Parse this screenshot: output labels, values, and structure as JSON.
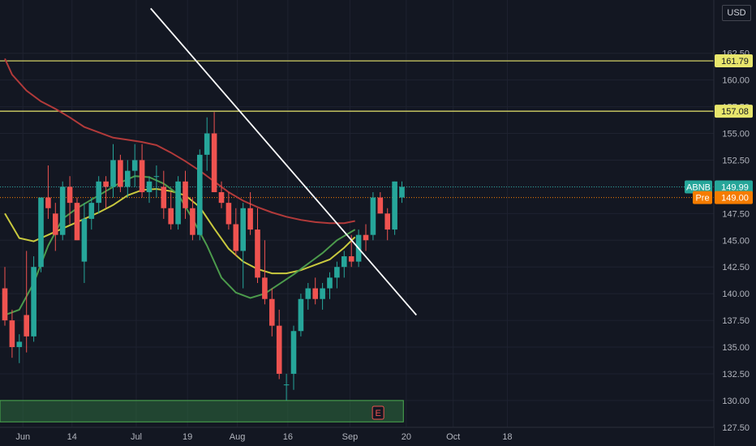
{
  "currency_button": "USD",
  "colors": {
    "background": "#131722",
    "up": "#26a69a",
    "down": "#ef5350",
    "ma_yellow": "#c9c93e",
    "ma_green": "#4c9b4c",
    "ma_red": "#b23a3a",
    "level_line": "#e8e66c",
    "trend_line": "#ffffff",
    "zone": "#2e6b3e"
  },
  "chart_data": {
    "type": "candlestick",
    "symbol": "ABNB",
    "ylim": [
      126.5,
      166.5
    ],
    "y_ticks": [
      "127.50",
      "130.00",
      "132.50",
      "135.00",
      "137.50",
      "140.00",
      "142.50",
      "145.00",
      "147.50",
      "150.00",
      "152.50",
      "155.00",
      "157.50",
      "160.00",
      "162.50"
    ],
    "x_ticks": [
      {
        "label": "Jun",
        "i": 2.5
      },
      {
        "label": "14",
        "i": 9.3
      },
      {
        "label": "Jul",
        "i": 18.2
      },
      {
        "label": "19",
        "i": 25.3
      },
      {
        "label": "Aug",
        "i": 32.2
      },
      {
        "label": "16",
        "i": 39.2
      },
      {
        "label": "Sep",
        "i": 47.8
      },
      {
        "label": "20",
        "i": 55.6
      },
      {
        "label": "Oct",
        "i": 62.1
      },
      {
        "label": "18",
        "i": 69.6
      }
    ],
    "candles": [
      [
        140.5,
        142.5,
        137.0,
        137.5
      ],
      [
        137.5,
        138.5,
        134.0,
        135.0
      ],
      [
        135.0,
        136.2,
        133.5,
        135.5
      ],
      [
        138.0,
        144.0,
        134.5,
        136.0
      ],
      [
        136.0,
        143.5,
        135.5,
        142.5
      ],
      [
        142.5,
        149.0,
        142.0,
        149.0
      ],
      [
        149.0,
        152.0,
        147.0,
        148.0
      ],
      [
        147.5,
        148.5,
        144.0,
        145.5
      ],
      [
        145.5,
        150.5,
        145.0,
        150.0
      ],
      [
        150.0,
        151.0,
        146.5,
        148.5
      ],
      [
        148.5,
        149.0,
        145.0,
        145.0
      ],
      [
        143.0,
        148.5,
        141.0,
        147.0
      ],
      [
        147.0,
        149.0,
        146.0,
        148.5
      ],
      [
        148.5,
        151.0,
        147.5,
        150.5
      ],
      [
        150.5,
        151.0,
        148.0,
        150.0
      ],
      [
        150.0,
        154.0,
        149.0,
        152.5
      ],
      [
        152.5,
        153.0,
        149.5,
        150.0
      ],
      [
        150.0,
        152.5,
        149.0,
        151.5
      ],
      [
        151.5,
        154.0,
        150.0,
        152.5
      ],
      [
        152.5,
        154.0,
        149.0,
        149.5
      ],
      [
        149.5,
        151.0,
        148.5,
        150.5
      ],
      [
        151.0,
        152.0,
        149.0,
        151.0
      ],
      [
        150.0,
        151.5,
        147.0,
        148.0
      ],
      [
        148.0,
        149.5,
        146.0,
        146.5
      ],
      [
        146.5,
        151.0,
        146.0,
        150.5
      ],
      [
        150.5,
        151.5,
        147.0,
        148.0
      ],
      [
        148.0,
        149.0,
        145.0,
        145.5
      ],
      [
        145.5,
        153.5,
        145.0,
        153.0
      ],
      [
        153.0,
        156.5,
        151.5,
        155.0
      ],
      [
        155.0,
        157.0,
        149.5,
        149.5
      ],
      [
        149.5,
        150.5,
        148.0,
        148.5
      ],
      [
        148.5,
        149.5,
        146.0,
        146.5
      ],
      [
        146.5,
        148.0,
        143.5,
        144.0
      ],
      [
        144.0,
        148.5,
        140.5,
        148.0
      ],
      [
        148.0,
        149.5,
        145.5,
        146.0
      ],
      [
        146.0,
        148.0,
        141.0,
        141.5
      ],
      [
        141.5,
        145.0,
        139.0,
        139.5
      ],
      [
        139.5,
        140.5,
        136.0,
        137.0
      ],
      [
        137.0,
        138.5,
        132.0,
        132.5
      ],
      [
        131.5,
        132.5,
        130.0,
        131.5
      ],
      [
        132.5,
        137.0,
        131.0,
        136.5
      ],
      [
        136.5,
        140.0,
        136.0,
        139.5
      ],
      [
        139.5,
        141.0,
        138.5,
        140.5
      ],
      [
        140.5,
        141.5,
        139.0,
        139.5
      ],
      [
        139.5,
        141.0,
        138.5,
        140.5
      ],
      [
        140.5,
        142.0,
        139.5,
        141.5
      ],
      [
        141.5,
        143.0,
        140.5,
        142.5
      ],
      [
        142.5,
        144.0,
        141.5,
        143.5
      ],
      [
        143.5,
        145.5,
        142.5,
        143.0
      ],
      [
        143.0,
        146.0,
        142.5,
        145.5
      ],
      [
        145.5,
        146.5,
        144.0,
        145.0
      ],
      [
        145.5,
        149.5,
        145.0,
        149.0
      ],
      [
        149.0,
        149.5,
        147.5,
        147.5
      ],
      [
        147.5,
        148.0,
        145.0,
        146.0
      ],
      [
        146.0,
        150.5,
        145.5,
        150.5
      ],
      [
        149.0,
        150.5,
        148.5,
        150.0
      ]
    ],
    "ma_yellow": [
      [
        0,
        147.5
      ],
      [
        2,
        145.2
      ],
      [
        4,
        144.9
      ],
      [
        7,
        145.8
      ],
      [
        10,
        146.7
      ],
      [
        13,
        147.6
      ],
      [
        15,
        148.3
      ],
      [
        17,
        149.2
      ],
      [
        19,
        149.7
      ],
      [
        21,
        149.8
      ],
      [
        23,
        149.6
      ],
      [
        25,
        149.2
      ],
      [
        27,
        148.1
      ],
      [
        29,
        146.1
      ],
      [
        31,
        144.2
      ],
      [
        33,
        143.0
      ],
      [
        35,
        142.3
      ],
      [
        37,
        141.9
      ],
      [
        39,
        141.9
      ],
      [
        41,
        142.2
      ],
      [
        43,
        142.7
      ],
      [
        45,
        143.2
      ],
      [
        47,
        144.3
      ],
      [
        48.5,
        145.3
      ]
    ],
    "ma_green": [
      [
        0,
        138.0
      ],
      [
        2,
        138.5
      ],
      [
        4,
        141.0
      ],
      [
        6,
        144.5
      ],
      [
        8,
        147.0
      ],
      [
        10,
        148.0
      ],
      [
        12,
        148.8
      ],
      [
        14,
        149.6
      ],
      [
        16,
        150.4
      ],
      [
        18,
        151.0
      ],
      [
        20,
        150.9
      ],
      [
        22,
        150.3
      ],
      [
        24,
        149.3
      ],
      [
        26,
        147.0
      ],
      [
        28,
        144.5
      ],
      [
        30,
        141.5
      ],
      [
        32,
        140.1
      ],
      [
        34,
        139.6
      ],
      [
        36,
        140.0
      ],
      [
        38,
        140.9
      ],
      [
        40,
        141.8
      ],
      [
        42,
        142.8
      ],
      [
        44,
        143.8
      ],
      [
        46,
        145.0
      ],
      [
        48.5,
        146.0
      ]
    ],
    "ma_red": [
      [
        0,
        162.0
      ],
      [
        1,
        160.5
      ],
      [
        3,
        159.0
      ],
      [
        5,
        158.0
      ],
      [
        7,
        157.3
      ],
      [
        9,
        156.5
      ],
      [
        11,
        155.6
      ],
      [
        13,
        155.1
      ],
      [
        15,
        154.6
      ],
      [
        17,
        154.4
      ],
      [
        19,
        154.2
      ],
      [
        21,
        153.9
      ],
      [
        23,
        153.2
      ],
      [
        25,
        152.4
      ],
      [
        27,
        151.5
      ],
      [
        29,
        150.5
      ],
      [
        31,
        149.5
      ],
      [
        33,
        148.7
      ],
      [
        35,
        148.1
      ],
      [
        37,
        147.6
      ],
      [
        39,
        147.2
      ],
      [
        41,
        146.9
      ],
      [
        43,
        146.7
      ],
      [
        45,
        146.6
      ],
      [
        47,
        146.6
      ],
      [
        48.5,
        146.8
      ]
    ],
    "levels": [
      {
        "price": 161.79,
        "label": "161.79"
      },
      {
        "price": 157.08,
        "label": "157.08"
      }
    ],
    "trendline": {
      "from": [
        20.2,
        166.7
      ],
      "to": [
        57.0,
        138.0
      ]
    },
    "zone": {
      "from_i": 0,
      "to_i": 55.2,
      "top": 130.0,
      "bottom": 128.0
    },
    "earnings_marker": "E",
    "last_price": {
      "label": "ABNB",
      "value": "149.99",
      "price": 149.99
    },
    "premarket": {
      "label": "Pre",
      "value": "149.00",
      "price": 149.0
    }
  }
}
